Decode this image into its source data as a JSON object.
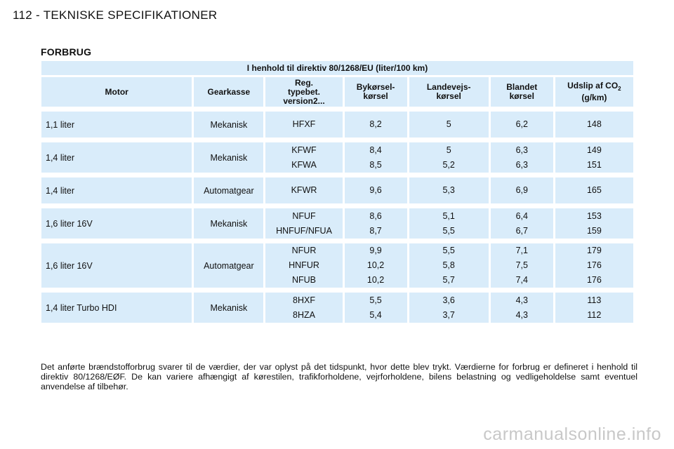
{
  "page": {
    "title": "112 - TEKNISKE SPECIFIKATIONER",
    "section_title": "FORBRUG"
  },
  "table": {
    "caption": "I henhold til direktiv 80/1268/EU (liter/100 km)",
    "headers": {
      "motor": "Motor",
      "gearkasse": "Gearkasse",
      "reg": "Reg.\ntypebet.\nversion2...",
      "bykorsel": "Bykørsel-\nkørsel",
      "landevejs": "Landevejs-\nkørsel",
      "blandet": "Blandet\nkørsel",
      "udslip": "Udslip af CO",
      "udslip_sub": "2",
      "udslip_unit": "(g/km)"
    },
    "rows": [
      {
        "motor": "1,1 liter",
        "gear": "Mekanisk",
        "versions": [
          {
            "reg": "HFXF",
            "by": "8,2",
            "land": "5",
            "blandet": "6,2",
            "co2": "148"
          }
        ]
      },
      {
        "motor": "1,4 liter",
        "gear": "Mekanisk",
        "versions": [
          {
            "reg": "KFWF",
            "by": "8,4",
            "land": "5",
            "blandet": "6,3",
            "co2": "149"
          },
          {
            "reg": "KFWA",
            "by": "8,5",
            "land": "5,2",
            "blandet": "6,3",
            "co2": "151"
          }
        ]
      },
      {
        "motor": "1,4 liter",
        "gear": "Automatgear",
        "versions": [
          {
            "reg": "KFWR",
            "by": "9,6",
            "land": "5,3",
            "blandet": "6,9",
            "co2": "165"
          }
        ]
      },
      {
        "motor": "1,6 liter 16V",
        "gear": "Mekanisk",
        "versions": [
          {
            "reg": "NFUF",
            "by": "8,6",
            "land": "5,1",
            "blandet": "6,4",
            "co2": "153"
          },
          {
            "reg": "HNFUF/NFUA",
            "by": "8,7",
            "land": "5,5",
            "blandet": "6,7",
            "co2": "159"
          }
        ]
      },
      {
        "motor": "1,6 liter 16V",
        "gear": "Automatgear",
        "versions": [
          {
            "reg": "NFUR",
            "by": "9,9",
            "land": "5,5",
            "blandet": "7,1",
            "co2": "179"
          },
          {
            "reg": "HNFUR",
            "by": "10,2",
            "land": "5,8",
            "blandet": "7,5",
            "co2": "176"
          },
          {
            "reg": "NFUB",
            "by": "10,2",
            "land": "5,7",
            "blandet": "7,4",
            "co2": "176"
          }
        ]
      },
      {
        "motor": "1,4 liter Turbo HDI",
        "gear": "Mekanisk",
        "versions": [
          {
            "reg": "8HXF",
            "by": "5,5",
            "land": "3,6",
            "blandet": "4,3",
            "co2": "113"
          },
          {
            "reg": "8HZA",
            "by": "5,4",
            "land": "3,7",
            "blandet": "4,3",
            "co2": "112"
          }
        ]
      }
    ]
  },
  "footnote": "Det anførte brændstofforbrug svarer til de værdier, der var oplyst på det tidspunkt, hvor dette blev trykt. Værdierne for forbrug er defineret i henhold til direktiv 80/1268/EØF. De kan variere afhængigt af kørestilen, trafikforholdene, vejrforholdene, bilens belastning og vedligeholdelse samt eventuel anvendelse af tilbehør.",
  "watermark": "carmanualsonline.info"
}
